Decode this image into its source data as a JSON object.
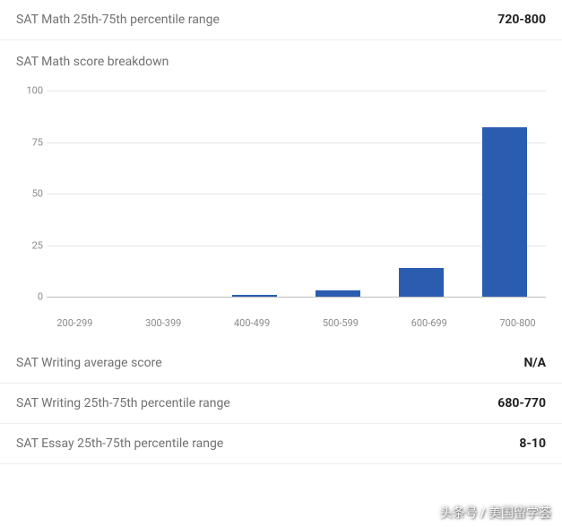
{
  "stats": {
    "math_range": {
      "label": "SAT Math 25th-75th percentile range",
      "value": "720-800"
    },
    "writing_avg": {
      "label": "SAT Writing average score",
      "value": "N/A"
    },
    "writing_range": {
      "label": "SAT Writing 25th-75th percentile range",
      "value": "680-770"
    },
    "essay_range": {
      "label": "SAT Essay 25th-75th percentile range",
      "value": "8-10"
    }
  },
  "chart": {
    "title": "SAT Math score breakdown",
    "type": "bar",
    "categories": [
      "200-299",
      "300-399",
      "400-499",
      "500-599",
      "600-699",
      "700-800"
    ],
    "values": [
      0,
      0,
      1,
      3,
      14,
      82
    ],
    "bar_color": "#2a5db0",
    "ylim": [
      0,
      100
    ],
    "ytick_step": 25,
    "yticks": [
      0,
      25,
      50,
      75,
      100
    ],
    "grid_color": "#e6e6e6",
    "baseline_color": "#bfbfbf",
    "background_color": "#ffffff",
    "label_fontsize": 11,
    "label_color": "#8a8a8a",
    "title_color": "#707172",
    "title_fontsize": 14
  },
  "watermark": "头条号 / 美国留学荟"
}
